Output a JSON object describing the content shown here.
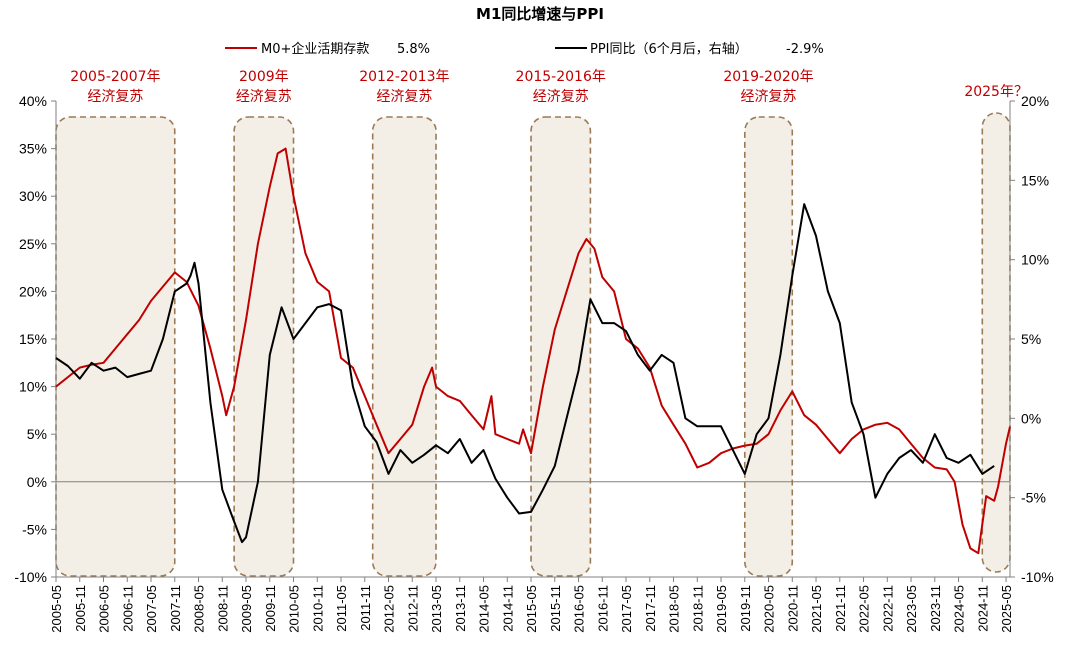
{
  "chart_data": {
    "type": "line",
    "title": "M1同比增速与PPI",
    "legend": [
      {
        "label": "M0+企业活期存款",
        "value": "5.8%",
        "color": "#c00000"
      },
      {
        "label": "PPI同比（6个月后，右轴）",
        "value": "-2.9%",
        "color": "#000000"
      }
    ],
    "y_left": {
      "min": -10,
      "max": 40,
      "ticks": [
        "40%",
        "35%",
        "30%",
        "25%",
        "20%",
        "15%",
        "10%",
        "5%",
        "0%",
        "-5%",
        "-10%"
      ]
    },
    "y_right": {
      "min": -10,
      "max": 20,
      "ticks": [
        "20%",
        "15%",
        "10%",
        "5%",
        "0%",
        "-5%",
        "-10%"
      ]
    },
    "x_range": {
      "start": "2005-05",
      "end": "2025-06"
    },
    "x_ticks": [
      "2005-05",
      "2005-11",
      "2006-05",
      "2006-11",
      "2007-05",
      "2007-11",
      "2008-05",
      "2008-11",
      "2009-05",
      "2009-11",
      "2010-05",
      "2010-11",
      "2011-05",
      "2011-11",
      "2012-05",
      "2012-11",
      "2013-05",
      "2013-11",
      "2014-05",
      "2014-11",
      "2015-05",
      "2015-11",
      "2016-05",
      "2016-11",
      "2017-05",
      "2017-11",
      "2018-05",
      "2018-11",
      "2019-05",
      "2019-11",
      "2020-05",
      "2020-11",
      "2021-05",
      "2021-11",
      "2022-05",
      "2022-11",
      "2023-05",
      "2023-11",
      "2024-05",
      "2024-11",
      "2025-05"
    ],
    "annotations": [
      {
        "label": [
          "2005-2007年",
          "经济复苏"
        ],
        "start": "2005-05",
        "end": "2007-11"
      },
      {
        "label": [
          "2009年",
          "经济复苏"
        ],
        "start": "2009-02",
        "end": "2010-05"
      },
      {
        "label": [
          "2012-2013年",
          "经济复苏"
        ],
        "start": "2012-01",
        "end": "2013-05"
      },
      {
        "label": [
          "2015-2016年",
          "经济复苏"
        ],
        "start": "2015-05",
        "end": "2016-08"
      },
      {
        "label": [
          "2019-2020年",
          "经济复苏"
        ],
        "start": "2019-11",
        "end": "2020-11"
      },
      {
        "label": [
          "2025年？"
        ],
        "start": "2024-11",
        "end": "2025-06"
      }
    ],
    "series": [
      {
        "name": "M0+企业活期存款",
        "axis": "left",
        "color": "#c00000",
        "points": [
          [
            "2005-05",
            10.0
          ],
          [
            "2005-08",
            11.0
          ],
          [
            "2005-11",
            12.0
          ],
          [
            "2006-02",
            12.3
          ],
          [
            "2006-05",
            12.5
          ],
          [
            "2006-08",
            14.0
          ],
          [
            "2006-11",
            15.5
          ],
          [
            "2007-02",
            17.0
          ],
          [
            "2007-05",
            19.0
          ],
          [
            "2007-08",
            20.5
          ],
          [
            "2007-11",
            22.0
          ],
          [
            "2008-02",
            21.0
          ],
          [
            "2008-05",
            18.5
          ],
          [
            "2008-08",
            14.0
          ],
          [
            "2008-11",
            9.0
          ],
          [
            "2008-12",
            7.0
          ],
          [
            "2009-02",
            10.0
          ],
          [
            "2009-05",
            17.0
          ],
          [
            "2009-08",
            25.0
          ],
          [
            "2009-11",
            31.0
          ],
          [
            "2010-01",
            34.5
          ],
          [
            "2010-03",
            35.0
          ],
          [
            "2010-05",
            30.0
          ],
          [
            "2010-08",
            24.0
          ],
          [
            "2010-11",
            21.0
          ],
          [
            "2011-02",
            20.0
          ],
          [
            "2011-05",
            13.0
          ],
          [
            "2011-08",
            12.0
          ],
          [
            "2011-11",
            9.0
          ],
          [
            "2012-02",
            6.0
          ],
          [
            "2012-05",
            3.0
          ],
          [
            "2012-08",
            4.5
          ],
          [
            "2012-11",
            6.0
          ],
          [
            "2013-02",
            10.0
          ],
          [
            "2013-04",
            12.0
          ],
          [
            "2013-05",
            10.0
          ],
          [
            "2013-08",
            9.0
          ],
          [
            "2013-11",
            8.5
          ],
          [
            "2014-02",
            7.0
          ],
          [
            "2014-05",
            5.5
          ],
          [
            "2014-07",
            9.0
          ],
          [
            "2014-08",
            5.0
          ],
          [
            "2014-11",
            4.5
          ],
          [
            "2015-02",
            4.0
          ],
          [
            "2015-03",
            5.5
          ],
          [
            "2015-05",
            3.0
          ],
          [
            "2015-08",
            10.0
          ],
          [
            "2015-11",
            16.0
          ],
          [
            "2016-02",
            20.0
          ],
          [
            "2016-05",
            24.0
          ],
          [
            "2016-07",
            25.5
          ],
          [
            "2016-09",
            24.5
          ],
          [
            "2016-11",
            21.5
          ],
          [
            "2017-02",
            20.0
          ],
          [
            "2017-05",
            15.0
          ],
          [
            "2017-08",
            14.0
          ],
          [
            "2017-11",
            12.0
          ],
          [
            "2018-02",
            8.0
          ],
          [
            "2018-05",
            6.0
          ],
          [
            "2018-08",
            4.0
          ],
          [
            "2018-11",
            1.5
          ],
          [
            "2019-02",
            2.0
          ],
          [
            "2019-05",
            3.0
          ],
          [
            "2019-08",
            3.5
          ],
          [
            "2019-11",
            3.8
          ],
          [
            "2020-02",
            4.0
          ],
          [
            "2020-05",
            5.0
          ],
          [
            "2020-08",
            7.5
          ],
          [
            "2020-11",
            9.5
          ],
          [
            "2021-02",
            7.0
          ],
          [
            "2021-05",
            6.0
          ],
          [
            "2021-08",
            4.5
          ],
          [
            "2021-11",
            3.0
          ],
          [
            "2022-02",
            4.5
          ],
          [
            "2022-05",
            5.5
          ],
          [
            "2022-08",
            6.0
          ],
          [
            "2022-11",
            6.2
          ],
          [
            "2023-02",
            5.5
          ],
          [
            "2023-05",
            4.0
          ],
          [
            "2023-08",
            2.5
          ],
          [
            "2023-11",
            1.5
          ],
          [
            "2024-02",
            1.3
          ],
          [
            "2024-04",
            0.0
          ],
          [
            "2024-06",
            -4.5
          ],
          [
            "2024-08",
            -7.0
          ],
          [
            "2024-10",
            -7.5
          ],
          [
            "2024-12",
            -1.5
          ],
          [
            "2025-02",
            -2.0
          ],
          [
            "2025-03",
            -0.5
          ],
          [
            "2025-05",
            4.0
          ],
          [
            "2025-06",
            5.8
          ]
        ]
      },
      {
        "name": "PPI同比（6个月后，右轴）",
        "axis": "right",
        "color": "#000000",
        "points": [
          [
            "2005-05",
            3.8
          ],
          [
            "2005-08",
            3.3
          ],
          [
            "2005-11",
            2.5
          ],
          [
            "2006-02",
            3.5
          ],
          [
            "2006-05",
            3.0
          ],
          [
            "2006-08",
            3.2
          ],
          [
            "2006-11",
            2.6
          ],
          [
            "2007-02",
            2.8
          ],
          [
            "2007-05",
            3.0
          ],
          [
            "2007-08",
            5.0
          ],
          [
            "2007-11",
            8.0
          ],
          [
            "2008-02",
            8.5
          ],
          [
            "2008-03",
            9.0
          ],
          [
            "2008-04",
            9.8
          ],
          [
            "2008-05",
            8.5
          ],
          [
            "2008-08",
            1.0
          ],
          [
            "2008-11",
            -4.5
          ],
          [
            "2009-02",
            -6.5
          ],
          [
            "2009-04",
            -7.8
          ],
          [
            "2009-05",
            -7.5
          ],
          [
            "2009-08",
            -4.0
          ],
          [
            "2009-11",
            4.0
          ],
          [
            "2010-02",
            7.0
          ],
          [
            "2010-05",
            5.0
          ],
          [
            "2010-08",
            6.0
          ],
          [
            "2010-11",
            7.0
          ],
          [
            "2011-02",
            7.2
          ],
          [
            "2011-05",
            6.8
          ],
          [
            "2011-08",
            2.0
          ],
          [
            "2011-11",
            -0.5
          ],
          [
            "2012-02",
            -1.5
          ],
          [
            "2012-05",
            -3.5
          ],
          [
            "2012-08",
            -2.0
          ],
          [
            "2012-11",
            -2.8
          ],
          [
            "2013-02",
            -2.3
          ],
          [
            "2013-05",
            -1.7
          ],
          [
            "2013-08",
            -2.2
          ],
          [
            "2013-11",
            -1.3
          ],
          [
            "2014-02",
            -2.8
          ],
          [
            "2014-05",
            -2.0
          ],
          [
            "2014-08",
            -3.8
          ],
          [
            "2014-11",
            -5.0
          ],
          [
            "2015-02",
            -6.0
          ],
          [
            "2015-05",
            -5.9
          ],
          [
            "2015-08",
            -4.5
          ],
          [
            "2015-11",
            -3.0
          ],
          [
            "2016-02",
            0.0
          ],
          [
            "2016-05",
            3.0
          ],
          [
            "2016-08",
            7.5
          ],
          [
            "2016-11",
            6.0
          ],
          [
            "2017-02",
            6.0
          ],
          [
            "2017-05",
            5.5
          ],
          [
            "2017-08",
            4.0
          ],
          [
            "2017-11",
            3.0
          ],
          [
            "2018-02",
            4.0
          ],
          [
            "2018-05",
            3.5
          ],
          [
            "2018-08",
            0.0
          ],
          [
            "2018-11",
            -0.5
          ],
          [
            "2019-02",
            -0.5
          ],
          [
            "2019-05",
            -0.5
          ],
          [
            "2019-08",
            -2.0
          ],
          [
            "2019-11",
            -3.5
          ],
          [
            "2020-02",
            -1.0
          ],
          [
            "2020-05",
            0.0
          ],
          [
            "2020-08",
            4.0
          ],
          [
            "2020-11",
            9.0
          ],
          [
            "2021-02",
            13.5
          ],
          [
            "2021-05",
            11.5
          ],
          [
            "2021-08",
            8.0
          ],
          [
            "2021-11",
            6.0
          ],
          [
            "2022-02",
            1.0
          ],
          [
            "2022-05",
            -1.0
          ],
          [
            "2022-08",
            -5.0
          ],
          [
            "2022-11",
            -3.5
          ],
          [
            "2023-02",
            -2.5
          ],
          [
            "2023-05",
            -2.0
          ],
          [
            "2023-08",
            -2.8
          ],
          [
            "2023-11",
            -1.0
          ],
          [
            "2024-02",
            -2.5
          ],
          [
            "2024-05",
            -2.8
          ],
          [
            "2024-08",
            -2.3
          ],
          [
            "2024-11",
            -3.5
          ],
          [
            "2025-02",
            -3.0
          ]
        ]
      }
    ]
  }
}
